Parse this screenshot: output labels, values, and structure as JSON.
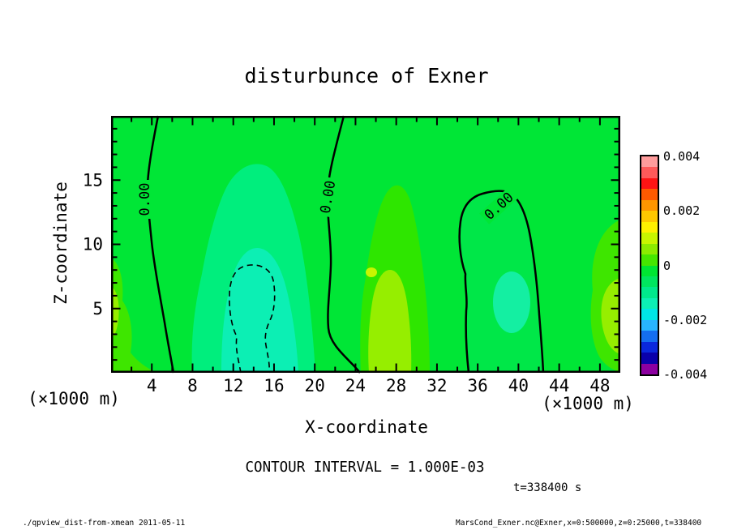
{
  "title": "disturbunce of Exner",
  "plot": {
    "x_axis": {
      "label": "X-coordinate",
      "unit_left": "(×1000 m)",
      "unit_right": "(×1000 m)",
      "range": [
        0,
        50
      ],
      "major_ticks": [
        4,
        8,
        12,
        16,
        20,
        24,
        28,
        32,
        36,
        40,
        44,
        48
      ],
      "minor_step": 2
    },
    "y_axis": {
      "label": "Z-coordinate",
      "range": [
        0,
        20
      ],
      "major_ticks": [
        5,
        10,
        15
      ],
      "minor_step": 1
    },
    "contour_labels": [
      "0.00",
      "0.00",
      "0.00"
    ]
  },
  "caption": "CONTOUR INTERVAL = 1.000E-03",
  "time_label": "t=338400 s",
  "footer_left": "./qpview_dist-from-xmean  2011-05-11",
  "footer_right": "MarsCond_Exner.nc@Exner,x=0:500000,z=0:25000,t=338400",
  "palette": {
    "plot_main": "#00e636",
    "band_neg1": "#00ee7d",
    "band_neg2": "#0cefb4",
    "dome_fill": "#00e748",
    "dome_oval": "#14efa2",
    "band_pos1": "#2ee600",
    "band_pos2": "#96ee00",
    "band_pos3": "#c8f500",
    "edge_pos": "#3ee600",
    "contour": "#000000"
  },
  "colorbar": {
    "labels": [
      "0.004",
      "0.002",
      "0",
      "-0.002",
      "-0.004"
    ],
    "colors": [
      "#ff9c9c",
      "#ff5a5a",
      "#ff1414",
      "#ff5a00",
      "#ff9600",
      "#ffc800",
      "#fff000",
      "#c8f500",
      "#8ceb00",
      "#46e600",
      "#00e632",
      "#00e65f",
      "#00e98c",
      "#0cefb4",
      "#00e6e6",
      "#28b4ff",
      "#146ef0",
      "#0a28dc",
      "#0a00aa",
      "#8c00a0"
    ]
  },
  "chart_data": {
    "type": "heatmap",
    "subtype": "filled-contour-xz-section",
    "title": "disturbunce of Exner",
    "xlabel": "X-coordinate (×1000 m)",
    "ylabel": "Z-coordinate (×1000 m)",
    "xlim": [
      0,
      50
    ],
    "ylim": [
      0,
      20
    ],
    "x_ticks_major": [
      4,
      8,
      12,
      16,
      20,
      24,
      28,
      32,
      36,
      40,
      44,
      48
    ],
    "x_tick_minor_step": 2,
    "y_ticks_major": [
      5,
      10,
      15
    ],
    "y_tick_minor_step": 1,
    "grid": false,
    "contour_interval": 0.001,
    "colorbar_range": [
      -0.004,
      0.004
    ],
    "colorbar_tick_values": [
      0.004,
      0.002,
      0,
      -0.002,
      -0.004
    ],
    "colorbar_position": "right",
    "time_seconds": 338400,
    "zero_contours": [
      {
        "style": "solid",
        "level": 0.0,
        "label": "0.00",
        "path_x_z": [
          [
            4.6,
            20
          ],
          [
            3.6,
            14
          ],
          [
            3.6,
            10
          ],
          [
            4.5,
            6
          ],
          [
            5.4,
            3.5
          ],
          [
            6.1,
            0
          ]
        ]
      },
      {
        "style": "solid",
        "level": 0.0,
        "label": "0.00",
        "path_x_z": [
          [
            22.8,
            20
          ],
          [
            21.2,
            13.8
          ],
          [
            21.6,
            8.5
          ],
          [
            21.3,
            3.5
          ],
          [
            24.4,
            0
          ]
        ]
      },
      {
        "style": "solid",
        "level": 0.0,
        "label": "0.00",
        "path_x_z": [
          [
            35.1,
            0
          ],
          [
            34.9,
            5
          ],
          [
            34.3,
            10
          ],
          [
            34.4,
            12
          ],
          [
            36.5,
            14
          ],
          [
            39.6,
            13.7
          ],
          [
            41.2,
            10
          ],
          [
            42.0,
            4.5
          ],
          [
            42.4,
            0
          ]
        ]
      },
      {
        "style": "dashed",
        "level": -0.001,
        "label": null,
        "path_x_z": [
          [
            12.7,
            0
          ],
          [
            11.7,
            4
          ],
          [
            11.8,
            7
          ],
          [
            13.7,
            8.5
          ],
          [
            15.9,
            6.5
          ],
          [
            15.6,
            3
          ],
          [
            15.5,
            0
          ]
        ]
      }
    ],
    "regions": [
      {
        "value_band": "-0.0005",
        "color": "#00ee7d",
        "approx_extent": "column x 8-20, z 0-15"
      },
      {
        "value_band": "-0.001",
        "color": "#0cefb4",
        "approx_extent": "core x 11-18.5, z 0-9.5"
      },
      {
        "value_band": "-0.0015",
        "color": "#0cefb4",
        "approx_extent": "inside dashed contour x 12-16, z 0-8.5"
      },
      {
        "value_band": "+0.0005",
        "color": "#2ee600",
        "approx_extent": "column x 24.5-31.5, z 0-14; left edge x 0-2 z 0-9; right edge x 45-50 z 0-12"
      },
      {
        "value_band": "+0.001",
        "color": "#96ee00",
        "approx_extent": "blob x 25.5-29.5, z 0-8"
      },
      {
        "value_band": "-0.0005",
        "color": "#14efa2",
        "approx_extent": "oval x 37.5-41, z 4-9.5 inside right 0.00 dome"
      },
      {
        "value_band": "0 to -0.0005",
        "color": "#00e636",
        "approx_extent": "background elsewhere"
      }
    ]
  }
}
